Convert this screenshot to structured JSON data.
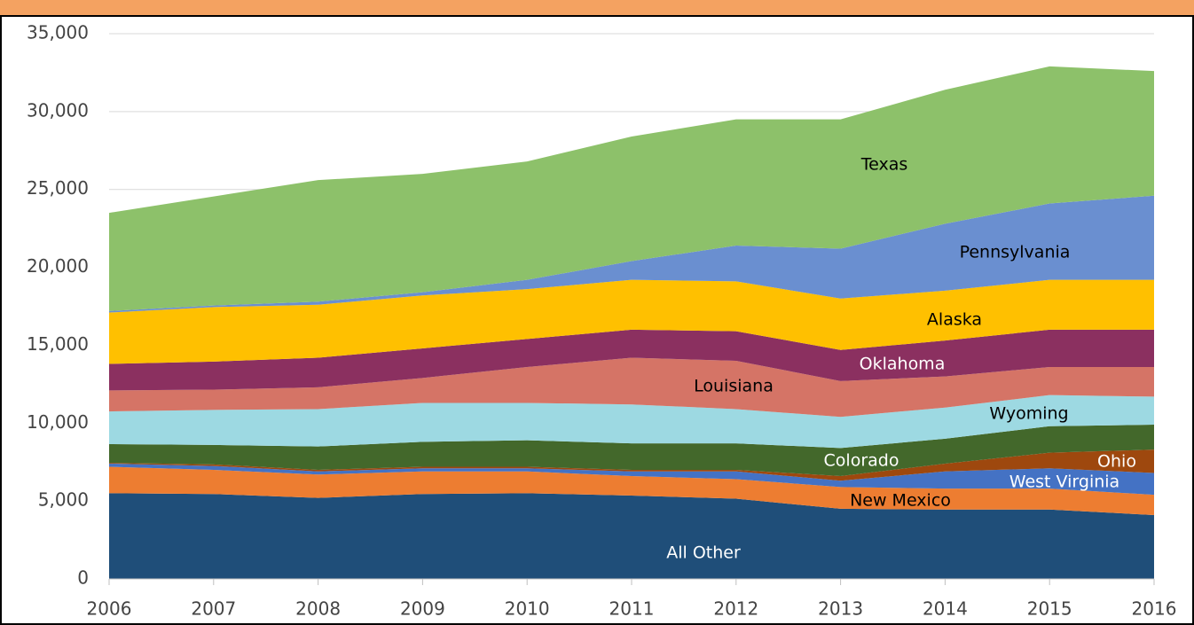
{
  "chart_data": {
    "type": "area",
    "stacked": true,
    "x": [
      2006,
      2007,
      2008,
      2009,
      2010,
      2011,
      2012,
      2013,
      2014,
      2015,
      2016
    ],
    "xlim": [
      2006,
      2016
    ],
    "xticks": [
      2006,
      2007,
      2008,
      2009,
      2010,
      2011,
      2012,
      2013,
      2014,
      2015,
      2016
    ],
    "ylim": [
      0,
      35000
    ],
    "yticks": [
      0,
      {
        "value": 5000,
        "label": "5,000"
      },
      {
        "value": 10000,
        "label": "10,000"
      },
      {
        "value": 15000,
        "label": "15,000"
      },
      {
        "value": 20000,
        "label": "20,000"
      },
      {
        "value": 25000,
        "label": "25,000"
      },
      {
        "value": 30000,
        "label": "30,000"
      },
      {
        "value": 35000,
        "label": "35,000"
      }
    ],
    "grid": true,
    "series": [
      {
        "name": "All Other",
        "color": "#1f4e79",
        "values": [
          5500,
          5450,
          5200,
          5450,
          5500,
          5350,
          5150,
          4500,
          4450,
          4450,
          4100
        ]
      },
      {
        "name": "New Mexico",
        "color": "#ed7d31",
        "values": [
          1700,
          1550,
          1500,
          1450,
          1400,
          1250,
          1250,
          1400,
          1350,
          1350,
          1300
        ]
      },
      {
        "name": "West Virginia",
        "color": "#4472c4",
        "values": [
          200,
          250,
          200,
          200,
          200,
          300,
          500,
          400,
          1100,
          1300,
          1400
        ]
      },
      {
        "name": "Ohio",
        "color": "#9e480e",
        "values": [
          50,
          100,
          100,
          100,
          100,
          100,
          100,
          300,
          500,
          1000,
          1500
        ]
      },
      {
        "name": "Colorado",
        "color": "#43682b",
        "values": [
          1200,
          1250,
          1500,
          1600,
          1700,
          1700,
          1700,
          1800,
          1600,
          1700,
          1600
        ]
      },
      {
        "name": "Wyoming",
        "color": "#9dd9e2",
        "values": [
          2100,
          2250,
          2400,
          2500,
          2400,
          2500,
          2200,
          2000,
          2000,
          2000,
          1800
        ]
      },
      {
        "name": "Louisiana",
        "color": "#d57466",
        "values": [
          1350,
          1300,
          1400,
          1600,
          2300,
          3000,
          3100,
          2300,
          2000,
          1800,
          1900
        ]
      },
      {
        "name": "Oklahoma",
        "color": "#8b3060",
        "values": [
          1700,
          1800,
          1900,
          1900,
          1800,
          1800,
          1900,
          2000,
          2300,
          2400,
          2400
        ]
      },
      {
        "name": "Alaska",
        "color": "#ffc000",
        "values": [
          3300,
          3500,
          3400,
          3400,
          3200,
          3200,
          3200,
          3300,
          3200,
          3200,
          3200
        ]
      },
      {
        "name": "Pennsylvania",
        "color": "#6a8fd0",
        "values": [
          100,
          100,
          200,
          200,
          600,
          1200,
          2300,
          3200,
          4300,
          4900,
          5400
        ]
      },
      {
        "name": "Texas",
        "color": "#8dc16a",
        "values": [
          6300,
          7000,
          7800,
          7600,
          7600,
          8000,
          8100,
          8300,
          8600,
          8800,
          8000
        ]
      }
    ]
  }
}
